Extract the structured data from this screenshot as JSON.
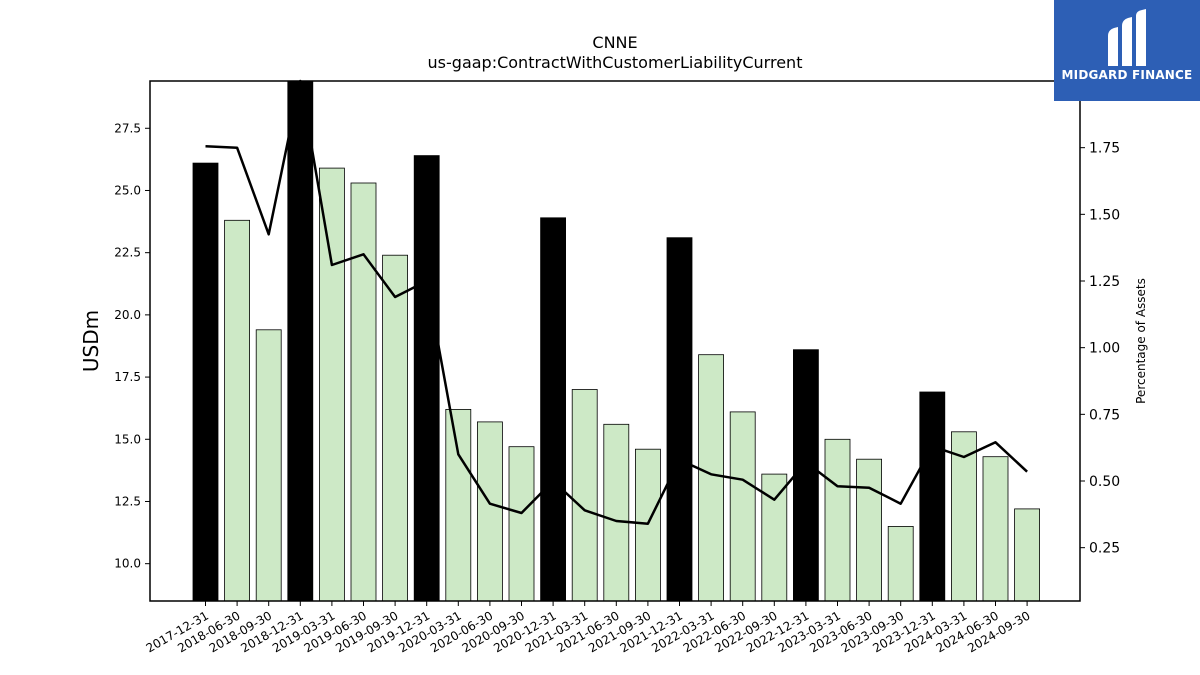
{
  "chart_data": {
    "type": "bar",
    "title": "CNNE",
    "subtitle": "us-gaap:ContractWithCustomerLiabilityCurrent",
    "ylabel": "USDm",
    "y2label": "Percentage of Assets",
    "ylim": [
      8.5,
      29.4
    ],
    "y2lim": [
      0.05,
      2.0
    ],
    "yticks": [
      "10.0",
      "12.5",
      "15.0",
      "17.5",
      "20.0",
      "22.5",
      "25.0",
      "27.5"
    ],
    "y2ticks": [
      "0.25",
      "0.50",
      "0.75",
      "1.00",
      "1.25",
      "1.50",
      "1.75"
    ],
    "categories": [
      "2017-12-31",
      "2018-06-30",
      "2018-09-30",
      "2018-12-31",
      "2019-03-31",
      "2019-06-30",
      "2019-09-30",
      "2019-12-31",
      "2020-03-31",
      "2020-06-30",
      "2020-09-30",
      "2020-12-31",
      "2021-03-31",
      "2021-06-30",
      "2021-09-30",
      "2021-12-31",
      "2022-03-31",
      "2022-06-30",
      "2022-09-30",
      "2022-12-31",
      "2023-03-31",
      "2023-06-30",
      "2023-09-30",
      "2023-12-31",
      "2024-03-31",
      "2024-06-30",
      "2024-09-30"
    ],
    "values": [
      26.1,
      23.8,
      19.4,
      29.4,
      25.9,
      25.3,
      22.4,
      26.4,
      16.2,
      15.7,
      14.7,
      23.9,
      17.0,
      15.6,
      14.6,
      23.1,
      18.4,
      16.1,
      13.6,
      18.6,
      15.0,
      14.2,
      11.5,
      16.9,
      15.3,
      14.3,
      12.2
    ],
    "year_end": [
      true,
      false,
      false,
      true,
      false,
      false,
      false,
      true,
      false,
      false,
      false,
      true,
      false,
      false,
      false,
      true,
      false,
      false,
      false,
      true,
      false,
      false,
      false,
      true,
      false,
      false,
      false
    ],
    "pct_assets": [
      1.755,
      1.75,
      1.425,
      2.0,
      1.31,
      1.35,
      1.19,
      1.25,
      0.6,
      0.415,
      0.38,
      0.5,
      0.39,
      0.35,
      0.34,
      0.58,
      0.525,
      0.505,
      0.43,
      0.57,
      0.48,
      0.475,
      0.415,
      0.63,
      0.59,
      0.645,
      0.535
    ],
    "colors": {
      "year_end": "#000000",
      "quarter": "#cde9c6",
      "line": "#000000"
    }
  },
  "logo": {
    "brand": "MIDGARD FINANCE",
    "bg_color": "#2d5fb5"
  }
}
